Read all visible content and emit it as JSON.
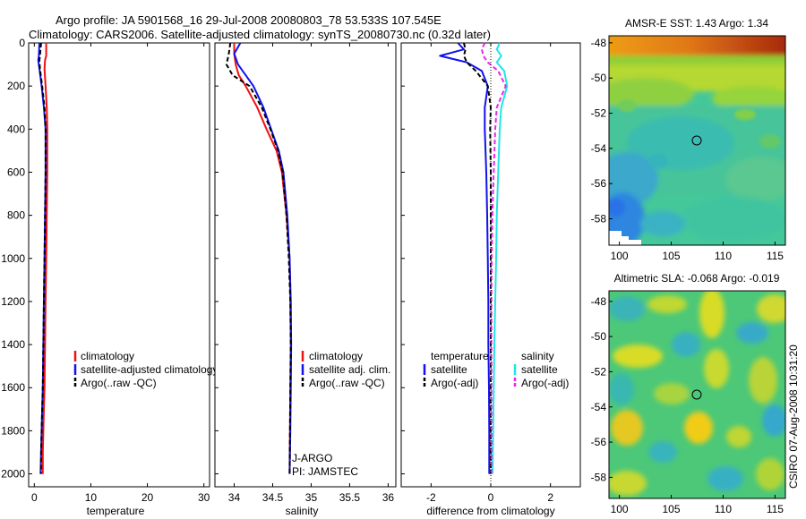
{
  "header": {
    "line1": "Argo profile: JA 5901568_16 29-Jul-2008 20080803_78 53.533S 107.545E",
    "line2": "Climatology: CARS2006. Satellite-adjusted climatology: synTS_20080730.nc (0.32d later)"
  },
  "colors": {
    "climatology": "#ee1111",
    "satellite": "#1111ee",
    "argo": "#000000",
    "salinity_satellite": "#22e5e5",
    "salinity_argo": "#ee22ee"
  },
  "chart_data": [
    {
      "type": "line",
      "name": "temperature-profile",
      "xlabel": "temperature",
      "xlim": [
        -1,
        31
      ],
      "ylim": [
        0,
        2060
      ],
      "y_reversed": true,
      "xticks": [
        0,
        10,
        20,
        30
      ],
      "yticks": [
        0,
        200,
        400,
        600,
        800,
        1000,
        1200,
        1400,
        1600,
        1800,
        2000
      ],
      "legend": [
        "climatology",
        "satellite-adjusted climatology",
        "Argo(..raw -QC)"
      ],
      "series": [
        {
          "name": "climatology",
          "color_key": "climatology",
          "dash": false,
          "x": [
            2.1,
            2.1,
            1.9,
            1.8,
            2.0,
            2.2,
            2.3,
            2.3,
            2.2,
            2.1,
            2.0,
            1.9,
            1.8,
            1.7,
            1.6,
            1.5,
            1.5
          ],
          "y": [
            0,
            60,
            80,
            120,
            200,
            300,
            400,
            600,
            800,
            1000,
            1200,
            1400,
            1600,
            1700,
            1800,
            1900,
            2000
          ]
        },
        {
          "name": "satellite-adjusted climatology",
          "color_key": "satellite",
          "dash": false,
          "x": [
            0.9,
            0.8,
            0.7,
            0.9,
            1.3,
            1.7,
            2.0,
            2.0,
            1.9,
            1.8,
            1.7,
            1.6,
            1.5,
            1.4,
            1.3,
            1.2,
            1.1
          ],
          "y": [
            0,
            60,
            80,
            120,
            200,
            300,
            400,
            600,
            800,
            1000,
            1200,
            1400,
            1600,
            1700,
            1800,
            1900,
            2000
          ]
        },
        {
          "name": "Argo(..raw -QC)",
          "color_key": "argo",
          "dash": true,
          "x": [
            1.2,
            1.0,
            0.9,
            1.0,
            1.4,
            1.8,
            2.0,
            2.0,
            1.9,
            1.8,
            1.7,
            1.6,
            1.5,
            1.4,
            1.3,
            1.2,
            1.2
          ],
          "y": [
            0,
            60,
            80,
            120,
            200,
            300,
            400,
            600,
            800,
            1000,
            1200,
            1400,
            1600,
            1700,
            1800,
            1900,
            2000
          ]
        }
      ]
    },
    {
      "type": "line",
      "name": "salinity-profile",
      "xlabel": "salinity",
      "xlim": [
        33.75,
        36.1
      ],
      "ylim": [
        0,
        2060
      ],
      "y_reversed": true,
      "xticks": [
        34,
        34.5,
        35,
        35.5,
        36
      ],
      "legend": [
        "climatology",
        "satellite adj. clim.",
        "Argo(..raw -QC)"
      ],
      "annotations": [
        "J-ARGO",
        "PI: JAMSTEC"
      ],
      "series": [
        {
          "name": "climatology",
          "color_key": "climatology",
          "dash": false,
          "x": [
            34.0,
            34.0,
            34.02,
            34.06,
            34.15,
            34.3,
            34.42,
            34.55,
            34.62,
            34.68,
            34.72,
            34.73,
            34.735,
            34.73,
            34.725,
            34.72
          ],
          "y": [
            0,
            50,
            100,
            150,
            200,
            300,
            400,
            500,
            600,
            800,
            1000,
            1200,
            1400,
            1600,
            1800,
            2000
          ]
        },
        {
          "name": "satellite adj. clim.",
          "color_key": "satellite",
          "dash": false,
          "x": [
            34.08,
            34.0,
            34.05,
            34.15,
            34.25,
            34.38,
            34.48,
            34.58,
            34.64,
            34.69,
            34.72,
            34.735,
            34.74,
            34.735,
            34.73,
            34.72
          ],
          "y": [
            0,
            50,
            100,
            150,
            200,
            300,
            400,
            500,
            600,
            800,
            1000,
            1200,
            1400,
            1600,
            1800,
            2000
          ]
        },
        {
          "name": "Argo(..raw -QC)",
          "color_key": "argo",
          "dash": true,
          "x": [
            33.95,
            33.93,
            33.9,
            33.98,
            34.2,
            34.36,
            34.47,
            34.57,
            34.63,
            34.68,
            34.71,
            34.73,
            34.735,
            34.73,
            34.725,
            34.72
          ],
          "y": [
            0,
            50,
            100,
            150,
            200,
            300,
            400,
            500,
            600,
            800,
            1000,
            1200,
            1400,
            1600,
            1800,
            2000
          ]
        }
      ]
    },
    {
      "type": "line",
      "name": "difference-from-climatology",
      "xlabel": "difference from climatology",
      "xlim": [
        -3,
        3
      ],
      "ylim": [
        0,
        2060
      ],
      "y_reversed": true,
      "xticks": [
        -2,
        0,
        2
      ],
      "legend_left": {
        "title": "temperature",
        "items": [
          "satellite",
          "Argo(-adj)"
        ]
      },
      "legend_right": {
        "title": "salinity",
        "items": [
          "satellite",
          "Argo(-adj)"
        ]
      },
      "series": [
        {
          "name": "temperature satellite",
          "color_key": "satellite",
          "dash": false,
          "x": [
            -1.1,
            -0.9,
            -1.7,
            -0.8,
            -0.3,
            -0.1,
            -0.2,
            -0.2,
            -0.15,
            -0.12,
            -0.1,
            -0.08,
            -0.08,
            -0.06,
            -0.05,
            -0.05
          ],
          "y": [
            0,
            30,
            60,
            90,
            130,
            200,
            300,
            400,
            600,
            800,
            1000,
            1200,
            1400,
            1600,
            1800,
            2000
          ]
        },
        {
          "name": "temperature Argo(-adj)",
          "color_key": "argo",
          "dash": true,
          "x": [
            -0.9,
            -0.85,
            -0.9,
            -0.8,
            -0.5,
            -0.1,
            0.0,
            -0.02,
            0.0,
            0.0,
            0.0,
            0.0,
            0.0,
            0.0,
            0.0,
            0.0
          ],
          "y": [
            0,
            30,
            60,
            90,
            130,
            200,
            300,
            400,
            600,
            800,
            1000,
            1200,
            1400,
            1600,
            1800,
            2000
          ]
        },
        {
          "name": "salinity satellite",
          "color_key": "salinity_satellite",
          "dash": false,
          "x": [
            0.3,
            0.2,
            0.35,
            0.2,
            0.45,
            0.55,
            0.35,
            0.3,
            0.25,
            0.2,
            0.18,
            0.15,
            0.12,
            0.1,
            0.08,
            0.06
          ],
          "y": [
            0,
            30,
            60,
            90,
            130,
            200,
            300,
            400,
            600,
            800,
            1000,
            1200,
            1400,
            1600,
            1800,
            2000
          ]
        },
        {
          "name": "salinity Argo(-adj)",
          "color_key": "salinity_argo",
          "dash": true,
          "x": [
            -0.2,
            -0.3,
            -0.25,
            -0.1,
            0.25,
            0.5,
            0.2,
            0.15,
            0.1,
            0.05,
            0.03,
            0.02,
            0.02,
            0.02,
            0.02,
            0.02
          ],
          "y": [
            0,
            30,
            60,
            90,
            130,
            200,
            300,
            400,
            600,
            800,
            1000,
            1200,
            1400,
            1600,
            1800,
            2000
          ]
        }
      ]
    },
    {
      "type": "heatmap",
      "name": "amsre-sst-map",
      "title": "AMSR-E SST: 1.43 Argo: 1.34",
      "xlim": [
        99,
        116
      ],
      "ylim": [
        -59.5,
        -47.6
      ],
      "xticks": [
        100,
        105,
        110,
        115
      ],
      "yticks": [
        -48,
        -50,
        -52,
        -54,
        -56,
        -58
      ],
      "marker": {
        "lon": 107.5,
        "lat": -53.5
      },
      "cmap": "jet",
      "description_of_field": "warm (red/orange) band along top edge, yellow-green band around -49 to -51, cyan-green mid region, blue patch at lower-left with white missing cells"
    },
    {
      "type": "heatmap",
      "name": "altimetric-sla-map",
      "title": "Altimetric SLA: -0.068 Argo: -0.019",
      "xlim": [
        99,
        116
      ],
      "ylim": [
        -59.2,
        -47.4
      ],
      "xticks": [
        100,
        105,
        110,
        115
      ],
      "yticks": [
        -48,
        -50,
        -52,
        -54,
        -56,
        -58
      ],
      "marker": {
        "lon": 107.5,
        "lat": -53.5
      },
      "cmap": "jet"
    }
  ],
  "footer": {
    "credit": "CSIRO 07-Aug-2008 10:31:20"
  }
}
